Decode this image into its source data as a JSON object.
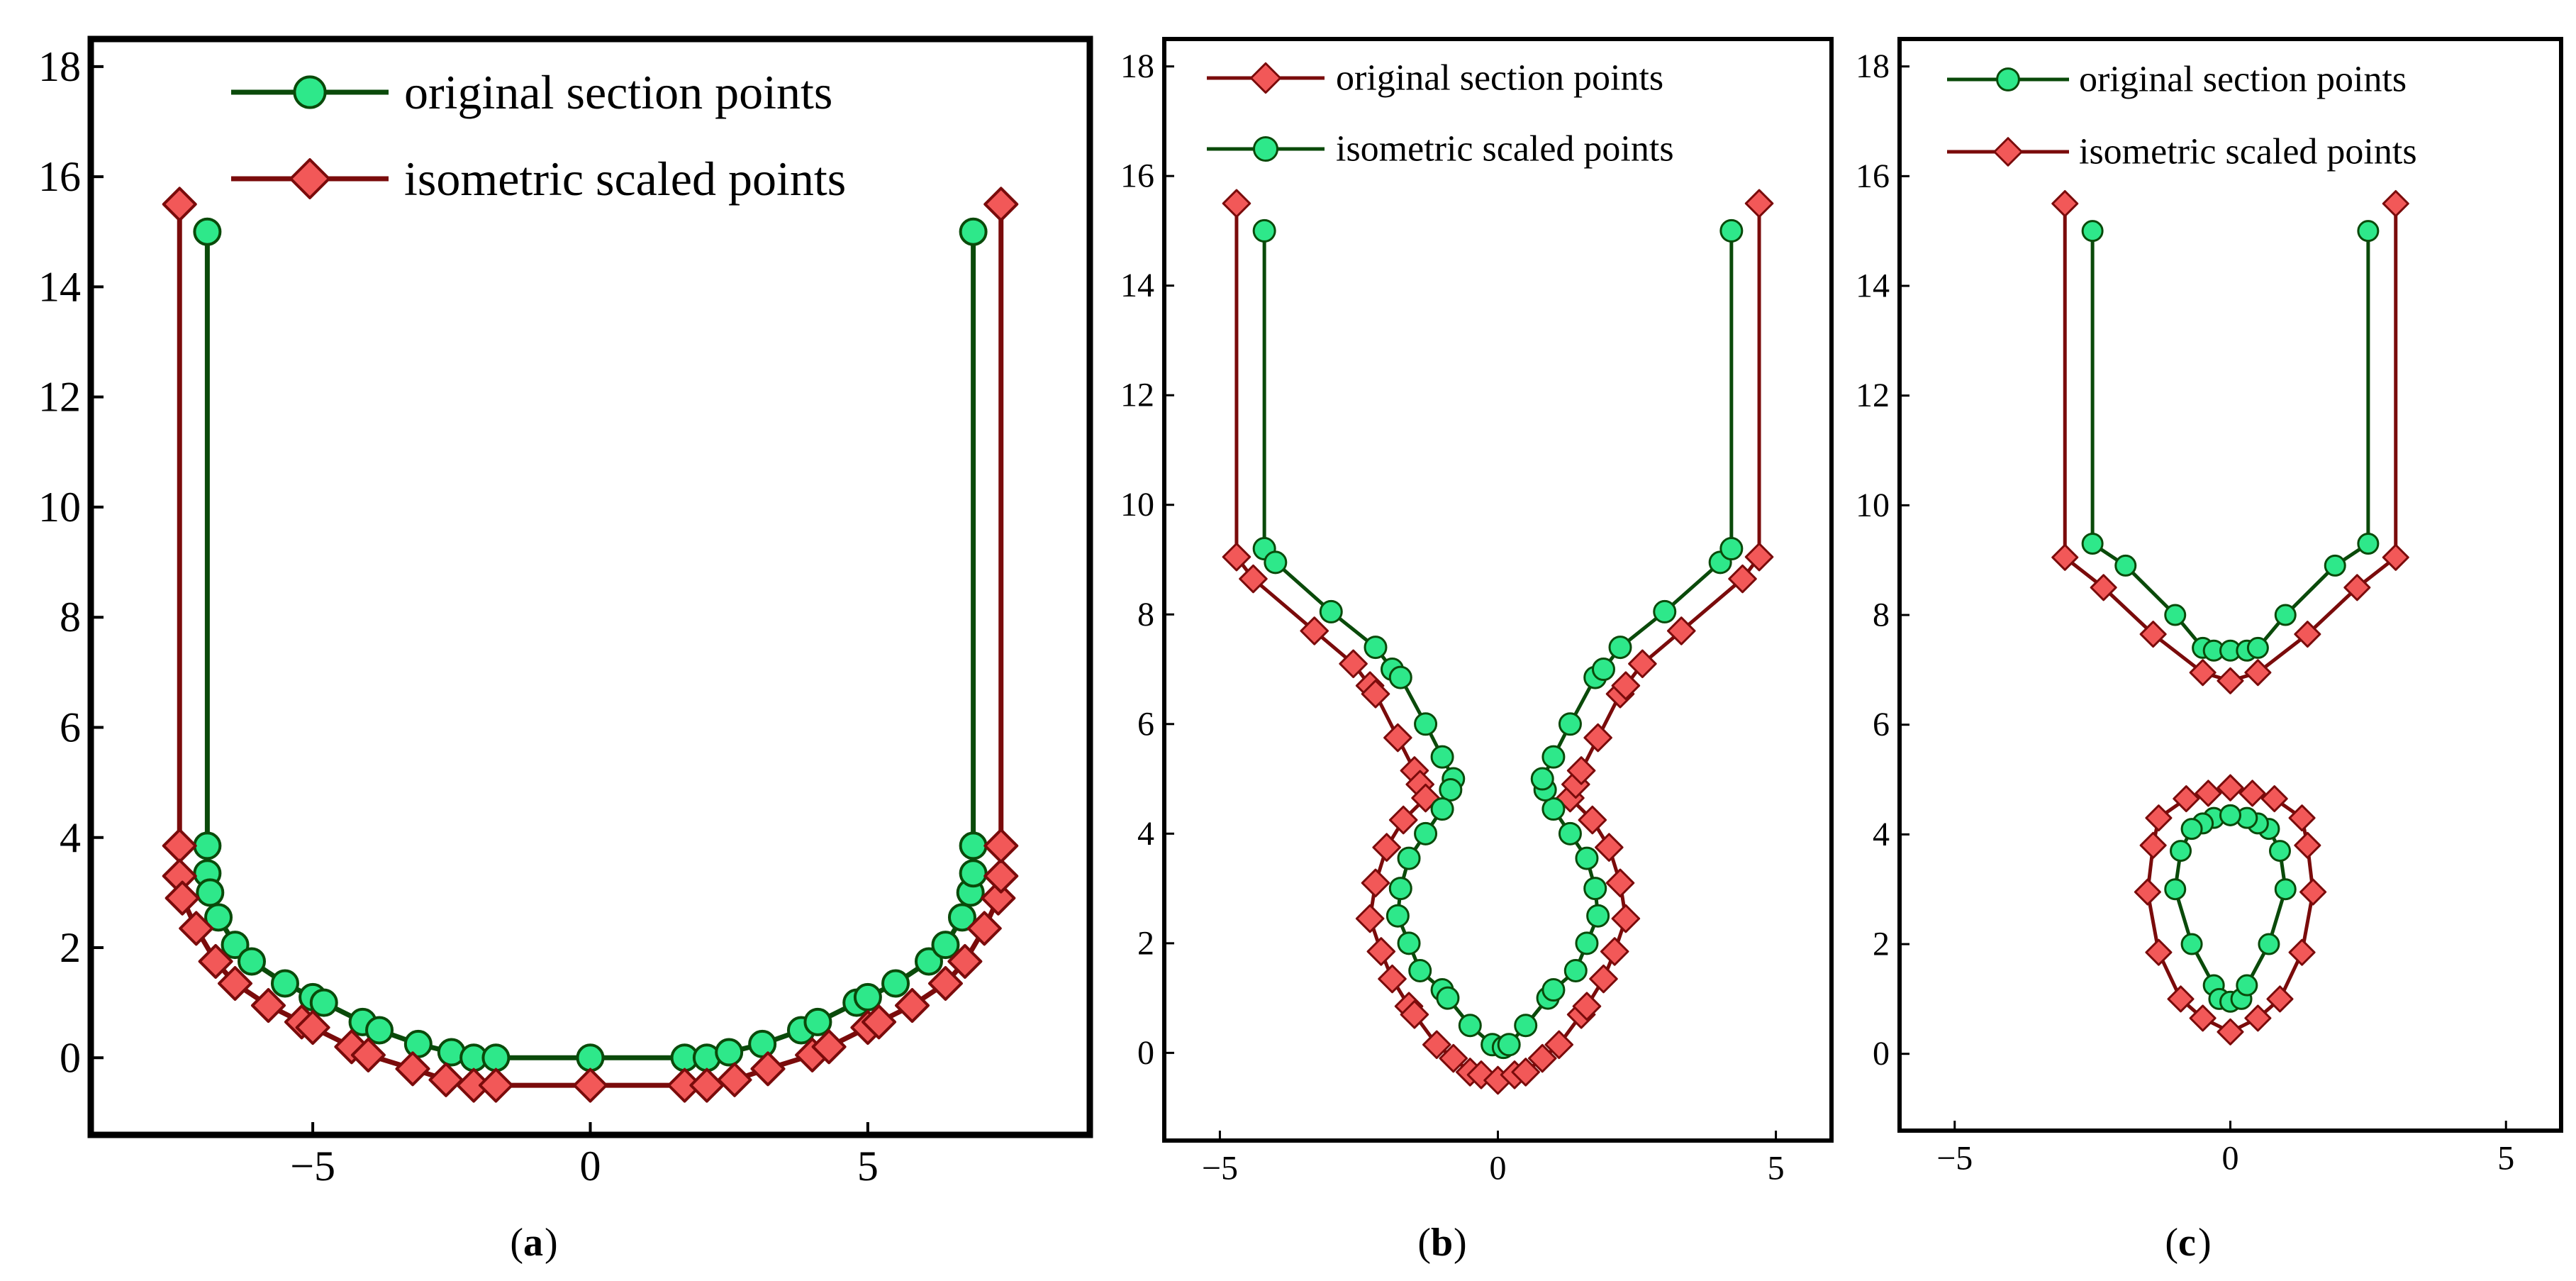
{
  "figure": {
    "panels": [
      {
        "label_open": "(",
        "label_letter": "a",
        "label_close": ")"
      },
      {
        "label_open": "(",
        "label_letter": "b",
        "label_close": ")"
      },
      {
        "label_open": "(",
        "label_letter": "c",
        "label_close": ")"
      }
    ]
  },
  "colors": {
    "original_line": "#0a4a0a",
    "original_fill": "#2ee88a",
    "scaled_line": "#7a0b0b",
    "scaled_fill": "#f25858"
  },
  "chart_data": [
    {
      "type": "line",
      "panel": "a",
      "xlim": [
        -9,
        9
      ],
      "ylim": [
        -1.4,
        18.5
      ],
      "xticks": [
        -5,
        0,
        5
      ],
      "xtick_labels": [
        "−5",
        "0",
        "5"
      ],
      "yticks": [
        0,
        2,
        4,
        6,
        8,
        10,
        12,
        14,
        16,
        18
      ],
      "ytick_labels": [
        "0",
        "2",
        "4",
        "6",
        "8",
        "10",
        "12",
        "14",
        "16",
        "18"
      ],
      "legend_position": "top-center",
      "series": [
        {
          "name": "original section points",
          "marker": "circle",
          "points": [
            [
              -6.9,
              15.0
            ],
            [
              -6.9,
              3.85
            ],
            [
              -6.9,
              3.35
            ],
            [
              -6.85,
              3.0
            ],
            [
              -6.7,
              2.55
            ],
            [
              -6.4,
              2.05
            ],
            [
              -6.1,
              1.75
            ],
            [
              -5.5,
              1.35
            ],
            [
              -5.0,
              1.1
            ],
            [
              -4.8,
              1.0
            ],
            [
              -4.1,
              0.65
            ],
            [
              -3.8,
              0.5
            ],
            [
              -3.1,
              0.25
            ],
            [
              -2.5,
              0.1
            ],
            [
              -2.1,
              0.0
            ],
            [
              -1.7,
              0.0
            ],
            [
              0.0,
              0.0
            ],
            [
              1.7,
              0.0
            ],
            [
              2.1,
              0.0
            ],
            [
              2.5,
              0.1
            ],
            [
              3.1,
              0.25
            ],
            [
              3.8,
              0.5
            ],
            [
              4.1,
              0.65
            ],
            [
              4.8,
              1.0
            ],
            [
              5.0,
              1.1
            ],
            [
              5.5,
              1.35
            ],
            [
              6.1,
              1.75
            ],
            [
              6.4,
              2.05
            ],
            [
              6.7,
              2.55
            ],
            [
              6.85,
              3.0
            ],
            [
              6.9,
              3.35
            ],
            [
              6.9,
              3.85
            ],
            [
              6.9,
              15.0
            ]
          ]
        },
        {
          "name": "isometric scaled points",
          "marker": "diamond",
          "points": [
            [
              -7.4,
              15.5
            ],
            [
              -7.4,
              3.85
            ],
            [
              -7.4,
              3.3
            ],
            [
              -7.35,
              2.9
            ],
            [
              -7.1,
              2.35
            ],
            [
              -6.75,
              1.75
            ],
            [
              -6.4,
              1.35
            ],
            [
              -5.8,
              0.95
            ],
            [
              -5.2,
              0.65
            ],
            [
              -5.0,
              0.55
            ],
            [
              -4.3,
              0.2
            ],
            [
              -4.0,
              0.05
            ],
            [
              -3.2,
              -0.2
            ],
            [
              -2.6,
              -0.4
            ],
            [
              -2.1,
              -0.5
            ],
            [
              -1.7,
              -0.5
            ],
            [
              0.0,
              -0.5
            ],
            [
              1.7,
              -0.5
            ],
            [
              2.1,
              -0.5
            ],
            [
              2.6,
              -0.4
            ],
            [
              3.2,
              -0.2
            ],
            [
              4.0,
              0.05
            ],
            [
              4.3,
              0.2
            ],
            [
              5.0,
              0.55
            ],
            [
              5.2,
              0.65
            ],
            [
              5.8,
              0.95
            ],
            [
              6.4,
              1.35
            ],
            [
              6.75,
              1.75
            ],
            [
              7.1,
              2.35
            ],
            [
              7.35,
              2.9
            ],
            [
              7.4,
              3.3
            ],
            [
              7.4,
              3.85
            ],
            [
              7.4,
              15.5
            ]
          ]
        }
      ]
    },
    {
      "type": "line",
      "panel": "b",
      "xlim": [
        -6,
        6
      ],
      "ylim": [
        -1.6,
        18.5
      ],
      "xticks": [
        -5,
        0,
        5
      ],
      "xtick_labels": [
        "−5",
        "0",
        "5"
      ],
      "yticks": [
        0,
        2,
        4,
        6,
        8,
        10,
        12,
        14,
        16,
        18
      ],
      "ytick_labels": [
        "0",
        "2",
        "4",
        "6",
        "8",
        "10",
        "12",
        "14",
        "16",
        "18"
      ],
      "legend_position": "top-center",
      "series": [
        {
          "name": "original section points",
          "marker": "diamond",
          "points": [
            [
              -4.7,
              15.5
            ],
            [
              -4.7,
              9.05
            ],
            [
              -4.4,
              8.65
            ],
            [
              -3.3,
              7.7
            ],
            [
              -2.6,
              7.1
            ],
            [
              -2.3,
              6.7
            ],
            [
              -2.2,
              6.55
            ],
            [
              -1.8,
              5.75
            ],
            [
              -1.5,
              5.15
            ],
            [
              -1.4,
              4.9
            ],
            [
              -1.3,
              4.65
            ],
            [
              -1.7,
              4.25
            ],
            [
              -2.0,
              3.75
            ],
            [
              -2.2,
              3.1
            ],
            [
              -2.3,
              2.45
            ],
            [
              -2.1,
              1.85
            ],
            [
              -1.9,
              1.35
            ],
            [
              -1.6,
              0.85
            ],
            [
              -1.5,
              0.7
            ],
            [
              -1.1,
              0.15
            ],
            [
              -0.8,
              -0.1
            ],
            [
              -0.5,
              -0.35
            ],
            [
              -0.3,
              -0.4
            ],
            [
              0.0,
              -0.5
            ],
            [
              0.3,
              -0.4
            ],
            [
              0.5,
              -0.35
            ],
            [
              0.8,
              -0.1
            ],
            [
              1.1,
              0.15
            ],
            [
              1.5,
              0.7
            ],
            [
              1.6,
              0.85
            ],
            [
              1.9,
              1.35
            ],
            [
              2.1,
              1.85
            ],
            [
              2.3,
              2.45
            ],
            [
              2.2,
              3.1
            ],
            [
              2.0,
              3.75
            ],
            [
              1.7,
              4.25
            ],
            [
              1.3,
              4.65
            ],
            [
              1.4,
              4.9
            ],
            [
              1.5,
              5.15
            ],
            [
              1.8,
              5.75
            ],
            [
              2.2,
              6.55
            ],
            [
              2.3,
              6.7
            ],
            [
              2.6,
              7.1
            ],
            [
              3.3,
              7.7
            ],
            [
              4.4,
              8.65
            ],
            [
              4.7,
              9.05
            ],
            [
              4.7,
              15.5
            ]
          ]
        },
        {
          "name": "isometric scaled points",
          "marker": "circle",
          "points": [
            [
              -4.2,
              15.0
            ],
            [
              -4.2,
              9.2
            ],
            [
              -4.0,
              8.95
            ],
            [
              -3.0,
              8.05
            ],
            [
              -2.2,
              7.4
            ],
            [
              -1.9,
              7.0
            ],
            [
              -1.75,
              6.85
            ],
            [
              -1.3,
              6.0
            ],
            [
              -1.0,
              5.4
            ],
            [
              -0.8,
              5.0
            ],
            [
              -0.85,
              4.8
            ],
            [
              -1.0,
              4.45
            ],
            [
              -1.3,
              4.0
            ],
            [
              -1.6,
              3.55
            ],
            [
              -1.75,
              3.0
            ],
            [
              -1.8,
              2.5
            ],
            [
              -1.6,
              2.0
            ],
            [
              -1.4,
              1.5
            ],
            [
              -1.0,
              1.15
            ],
            [
              -0.9,
              1.0
            ],
            [
              -0.5,
              0.5
            ],
            [
              -0.1,
              0.15
            ],
            [
              0.1,
              0.1
            ],
            [
              0.2,
              0.15
            ],
            [
              0.5,
              0.5
            ],
            [
              0.9,
              1.0
            ],
            [
              1.0,
              1.15
            ],
            [
              1.4,
              1.5
            ],
            [
              1.6,
              2.0
            ],
            [
              1.8,
              2.5
            ],
            [
              1.75,
              3.0
            ],
            [
              1.6,
              3.55
            ],
            [
              1.3,
              4.0
            ],
            [
              1.0,
              4.45
            ],
            [
              0.85,
              4.8
            ],
            [
              0.8,
              5.0
            ],
            [
              1.0,
              5.4
            ],
            [
              1.3,
              6.0
            ],
            [
              1.75,
              6.85
            ],
            [
              1.9,
              7.0
            ],
            [
              2.2,
              7.4
            ],
            [
              3.0,
              8.05
            ],
            [
              4.0,
              8.95
            ],
            [
              4.2,
              9.2
            ],
            [
              4.2,
              15.0
            ]
          ]
        }
      ]
    },
    {
      "type": "line",
      "panel": "c",
      "xlim": [
        -6,
        6
      ],
      "ylim": [
        -1.4,
        18.5
      ],
      "xticks": [
        -5,
        0,
        5
      ],
      "xtick_labels": [
        "−5",
        "0",
        "5"
      ],
      "yticks": [
        0,
        2,
        4,
        6,
        8,
        10,
        12,
        14,
        16,
        18
      ],
      "ytick_labels": [
        "0",
        "2",
        "4",
        "6",
        "8",
        "10",
        "12",
        "14",
        "16",
        "18"
      ],
      "legend_position": "top-center",
      "series": [
        {
          "name": "original section points",
          "marker": "circle",
          "paths": [
            [
              [
                -2.5,
                15.0
              ],
              [
                -2.5,
                9.3
              ],
              [
                -1.9,
                8.9
              ],
              [
                -1.0,
                8.0
              ],
              [
                -0.5,
                7.4
              ],
              [
                -0.3,
                7.35
              ],
              [
                0.0,
                7.35
              ],
              [
                0.3,
                7.35
              ],
              [
                0.5,
                7.4
              ],
              [
                1.0,
                8.0
              ],
              [
                1.9,
                8.9
              ],
              [
                2.5,
                9.3
              ],
              [
                2.5,
                15.0
              ]
            ],
            [
              [
                0.0,
                4.35
              ],
              [
                -0.3,
                4.3
              ],
              [
                -0.5,
                4.2
              ],
              [
                -0.7,
                4.1
              ],
              [
                -0.9,
                3.7
              ],
              [
                -1.0,
                3.0
              ],
              [
                -0.7,
                2.0
              ],
              [
                -0.3,
                1.25
              ],
              [
                -0.2,
                1.0
              ],
              [
                0.0,
                0.95
              ],
              [
                0.2,
                1.0
              ],
              [
                0.3,
                1.25
              ],
              [
                0.7,
                2.0
              ],
              [
                1.0,
                3.0
              ],
              [
                0.9,
                3.7
              ],
              [
                0.7,
                4.1
              ],
              [
                0.5,
                4.2
              ],
              [
                0.3,
                4.3
              ],
              [
                0.0,
                4.35
              ]
            ]
          ]
        },
        {
          "name": "isometric scaled points",
          "marker": "diamond",
          "paths": [
            [
              [
                -3.0,
                15.5
              ],
              [
                -3.0,
                9.05
              ],
              [
                -2.3,
                8.5
              ],
              [
                -1.4,
                7.65
              ],
              [
                -0.5,
                6.95
              ],
              [
                0.0,
                6.8
              ],
              [
                0.5,
                6.95
              ],
              [
                1.4,
                7.65
              ],
              [
                2.3,
                8.5
              ],
              [
                3.0,
                9.05
              ],
              [
                3.0,
                15.5
              ]
            ],
            [
              [
                0.0,
                4.85
              ],
              [
                -0.4,
                4.75
              ],
              [
                -0.8,
                4.65
              ],
              [
                -1.3,
                4.3
              ],
              [
                -1.4,
                3.8
              ],
              [
                -1.5,
                2.95
              ],
              [
                -1.3,
                1.85
              ],
              [
                -0.9,
                1.0
              ],
              [
                -0.5,
                0.65
              ],
              [
                0.0,
                0.4
              ],
              [
                0.5,
                0.65
              ],
              [
                0.9,
                1.0
              ],
              [
                1.3,
                1.85
              ],
              [
                1.5,
                2.95
              ],
              [
                1.4,
                3.8
              ],
              [
                1.3,
                4.3
              ],
              [
                0.8,
                4.65
              ],
              [
                0.4,
                4.75
              ],
              [
                0.0,
                4.85
              ]
            ]
          ]
        }
      ]
    }
  ]
}
